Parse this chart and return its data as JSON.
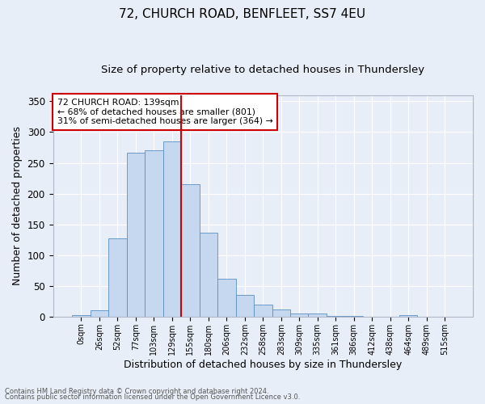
{
  "title": "72, CHURCH ROAD, BENFLEET, SS7 4EU",
  "subtitle": "Size of property relative to detached houses in Thundersley",
  "xlabel": "Distribution of detached houses by size in Thundersley",
  "ylabel": "Number of detached properties",
  "footnote1": "Contains HM Land Registry data © Crown copyright and database right 2024.",
  "footnote2": "Contains public sector information licensed under the Open Government Licence v3.0.",
  "bar_labels": [
    "0sqm",
    "26sqm",
    "52sqm",
    "77sqm",
    "103sqm",
    "129sqm",
    "155sqm",
    "180sqm",
    "206sqm",
    "232sqm",
    "258sqm",
    "283sqm",
    "309sqm",
    "335sqm",
    "361sqm",
    "386sqm",
    "412sqm",
    "438sqm",
    "464sqm",
    "489sqm",
    "515sqm"
  ],
  "bar_values": [
    2,
    11,
    127,
    267,
    270,
    285,
    215,
    136,
    61,
    36,
    20,
    12,
    5,
    5,
    1,
    1,
    0,
    0,
    2,
    0,
    0
  ],
  "bar_color": "#c5d8f0",
  "bar_edge_color": "#5a8fc2",
  "vline_color": "#cc0000",
  "annotation_text": "72 CHURCH ROAD: 139sqm\n← 68% of detached houses are smaller (801)\n31% of semi-detached houses are larger (364) →",
  "annotation_box_color": "#cc0000",
  "annotation_text_color": "#000000",
  "annotation_bg_color": "#ffffff",
  "ylim": [
    0,
    360
  ],
  "yticks": [
    0,
    50,
    100,
    150,
    200,
    250,
    300,
    350
  ],
  "bg_color": "#e8eef7",
  "plot_bg_color": "#e8eef7",
  "grid_color": "#ffffff",
  "title_fontsize": 11,
  "subtitle_fontsize": 9.5,
  "xlabel_fontsize": 9,
  "ylabel_fontsize": 9
}
